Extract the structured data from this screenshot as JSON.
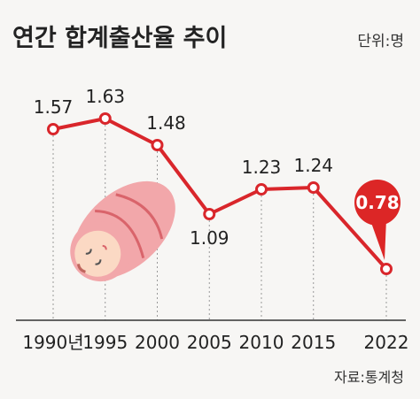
{
  "chart_data": {
    "type": "line",
    "title": "연간 합계출산율 추이",
    "unit_note": "단위:명",
    "source_note": "자료:통계청",
    "categories": [
      "1990년",
      "1995",
      "2000",
      "2005",
      "2010",
      "2015",
      "2022"
    ],
    "x": [
      1990,
      1995,
      2000,
      2005,
      2010,
      2015,
      2022
    ],
    "values": [
      1.57,
      1.63,
      1.48,
      1.09,
      1.23,
      1.24,
      0.78
    ],
    "value_labels": [
      "1.57",
      "1.63",
      "1.48",
      "1.09",
      "1.23",
      "1.24",
      "0.78"
    ],
    "highlight_index": 6,
    "ylim": [
      0.5,
      1.9
    ],
    "grid": false,
    "dashed_drop_lines": true,
    "colors": {
      "line": "#d9262b",
      "marker_fill": "#ffffff",
      "highlight_fill": "#dc2626",
      "highlight_text": "#ffffff",
      "text": "#222222",
      "drop_line": "#999999",
      "baseline": "#333333",
      "baby_blanket": "#f2a7aa",
      "baby_face": "#fbd9c4"
    },
    "illustration": "swaddled-baby"
  }
}
